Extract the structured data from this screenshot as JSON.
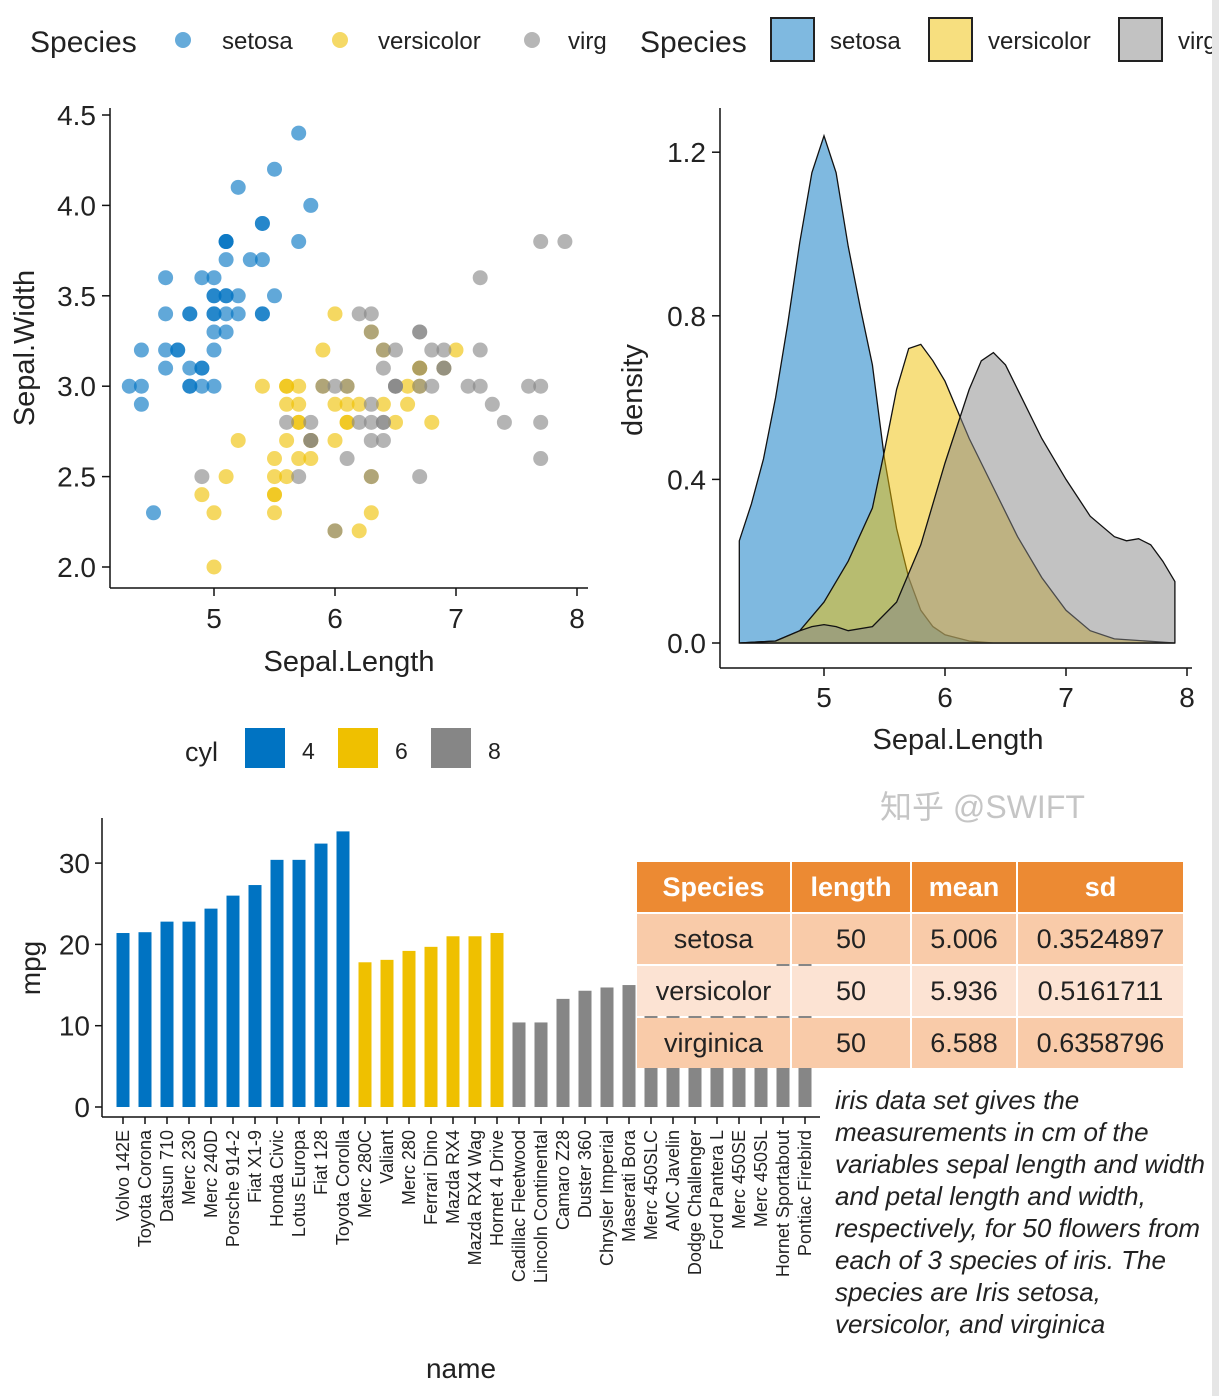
{
  "colors": {
    "setosa": "#0073C2",
    "versicolor": "#EFC000",
    "virginica": "#868686",
    "table_header": "#EC8A33",
    "table_odd": "#F9CBA9",
    "table_even": "#FCE3D3"
  },
  "chart_data": [
    {
      "type": "scatter",
      "legend": {
        "title": "Species",
        "entries": [
          "setosa",
          "versicolor",
          "virg"
        ],
        "placement": "top"
      },
      "xlabel": "Sepal.Length",
      "ylabel": "Sepal.Width",
      "xlim": [
        4.2,
        8.05
      ],
      "ylim": [
        1.9,
        4.55
      ],
      "xticks": [
        5,
        6,
        7,
        8
      ],
      "yticks": [
        "2.0",
        "2.5",
        "3.0",
        "3.5",
        "4.0",
        "4.5"
      ],
      "series": [
        {
          "name": "setosa",
          "points": [
            [
              5.1,
              3.5
            ],
            [
              4.9,
              3.0
            ],
            [
              4.7,
              3.2
            ],
            [
              4.6,
              3.1
            ],
            [
              5.0,
              3.6
            ],
            [
              5.4,
              3.9
            ],
            [
              4.6,
              3.4
            ],
            [
              5.0,
              3.4
            ],
            [
              4.4,
              2.9
            ],
            [
              4.9,
              3.1
            ],
            [
              5.4,
              3.7
            ],
            [
              4.8,
              3.4
            ],
            [
              4.8,
              3.0
            ],
            [
              4.3,
              3.0
            ],
            [
              5.8,
              4.0
            ],
            [
              5.7,
              4.4
            ],
            [
              5.4,
              3.9
            ],
            [
              5.1,
              3.5
            ],
            [
              5.7,
              3.8
            ],
            [
              5.1,
              3.8
            ],
            [
              5.4,
              3.4
            ],
            [
              5.1,
              3.7
            ],
            [
              4.6,
              3.6
            ],
            [
              5.1,
              3.3
            ],
            [
              4.8,
              3.4
            ],
            [
              5.0,
              3.0
            ],
            [
              5.0,
              3.4
            ],
            [
              5.2,
              3.5
            ],
            [
              5.2,
              3.4
            ],
            [
              4.7,
              3.2
            ],
            [
              4.8,
              3.1
            ],
            [
              5.4,
              3.4
            ],
            [
              5.2,
              4.1
            ],
            [
              5.5,
              4.2
            ],
            [
              4.9,
              3.1
            ],
            [
              5.0,
              3.2
            ],
            [
              5.5,
              3.5
            ],
            [
              4.9,
              3.6
            ],
            [
              4.4,
              3.0
            ],
            [
              5.1,
              3.4
            ],
            [
              5.0,
              3.5
            ],
            [
              4.5,
              2.3
            ],
            [
              4.4,
              3.2
            ],
            [
              5.0,
              3.5
            ],
            [
              5.1,
              3.8
            ],
            [
              4.8,
              3.0
            ],
            [
              5.1,
              3.8
            ],
            [
              4.6,
              3.2
            ],
            [
              5.3,
              3.7
            ],
            [
              5.0,
              3.3
            ]
          ]
        },
        {
          "name": "versicolor",
          "points": [
            [
              7.0,
              3.2
            ],
            [
              6.4,
              3.2
            ],
            [
              6.9,
              3.1
            ],
            [
              5.5,
              2.3
            ],
            [
              6.5,
              2.8
            ],
            [
              5.7,
              2.8
            ],
            [
              6.3,
              3.3
            ],
            [
              4.9,
              2.4
            ],
            [
              6.6,
              2.9
            ],
            [
              5.2,
              2.7
            ],
            [
              5.0,
              2.0
            ],
            [
              5.9,
              3.0
            ],
            [
              6.0,
              2.2
            ],
            [
              6.1,
              2.9
            ],
            [
              5.6,
              2.9
            ],
            [
              6.7,
              3.1
            ],
            [
              5.6,
              3.0
            ],
            [
              5.8,
              2.7
            ],
            [
              6.2,
              2.2
            ],
            [
              5.6,
              2.5
            ],
            [
              5.9,
              3.2
            ],
            [
              6.1,
              2.8
            ],
            [
              6.3,
              2.5
            ],
            [
              6.1,
              2.8
            ],
            [
              6.4,
              2.9
            ],
            [
              6.6,
              3.0
            ],
            [
              6.8,
              2.8
            ],
            [
              6.7,
              3.0
            ],
            [
              6.0,
              2.9
            ],
            [
              5.7,
              2.6
            ],
            [
              5.5,
              2.4
            ],
            [
              5.5,
              2.4
            ],
            [
              5.8,
              2.7
            ],
            [
              6.0,
              2.7
            ],
            [
              5.4,
              3.0
            ],
            [
              6.0,
              3.4
            ],
            [
              6.7,
              3.1
            ],
            [
              6.3,
              2.3
            ],
            [
              5.6,
              3.0
            ],
            [
              5.5,
              2.5
            ],
            [
              5.5,
              2.6
            ],
            [
              6.1,
              3.0
            ],
            [
              5.8,
              2.6
            ],
            [
              5.0,
              2.3
            ],
            [
              5.6,
              2.7
            ],
            [
              5.7,
              3.0
            ],
            [
              5.7,
              2.9
            ],
            [
              6.2,
              2.9
            ],
            [
              5.1,
              2.5
            ],
            [
              5.7,
              2.8
            ]
          ]
        },
        {
          "name": "virginica",
          "points": [
            [
              6.3,
              3.3
            ],
            [
              5.8,
              2.7
            ],
            [
              7.1,
              3.0
            ],
            [
              6.3,
              2.9
            ],
            [
              6.5,
              3.0
            ],
            [
              7.6,
              3.0
            ],
            [
              4.9,
              2.5
            ],
            [
              7.3,
              2.9
            ],
            [
              6.7,
              2.5
            ],
            [
              7.2,
              3.6
            ],
            [
              6.5,
              3.2
            ],
            [
              6.4,
              2.7
            ],
            [
              6.8,
              3.0
            ],
            [
              5.7,
              2.5
            ],
            [
              5.8,
              2.8
            ],
            [
              6.4,
              3.2
            ],
            [
              6.5,
              3.0
            ],
            [
              7.7,
              3.8
            ],
            [
              7.7,
              2.6
            ],
            [
              6.0,
              2.2
            ],
            [
              6.9,
              3.2
            ],
            [
              5.6,
              2.8
            ],
            [
              7.7,
              2.8
            ],
            [
              6.3,
              2.7
            ],
            [
              6.7,
              3.3
            ],
            [
              7.2,
              3.2
            ],
            [
              6.2,
              2.8
            ],
            [
              6.1,
              3.0
            ],
            [
              6.4,
              2.8
            ],
            [
              7.2,
              3.0
            ],
            [
              7.4,
              2.8
            ],
            [
              7.9,
              3.8
            ],
            [
              6.4,
              2.8
            ],
            [
              6.3,
              2.8
            ],
            [
              6.1,
              2.6
            ],
            [
              7.7,
              3.0
            ],
            [
              6.3,
              3.4
            ],
            [
              6.4,
              3.1
            ],
            [
              6.0,
              3.0
            ],
            [
              6.9,
              3.1
            ],
            [
              6.7,
              3.1
            ],
            [
              6.9,
              3.1
            ],
            [
              5.8,
              2.7
            ],
            [
              6.8,
              3.2
            ],
            [
              6.7,
              3.3
            ],
            [
              6.7,
              3.0
            ],
            [
              6.3,
              2.5
            ],
            [
              6.5,
              3.0
            ],
            [
              6.2,
              3.4
            ],
            [
              5.9,
              3.0
            ]
          ]
        }
      ]
    },
    {
      "type": "area",
      "legend": {
        "title": "Species",
        "entries": [
          "setosa",
          "versicolor",
          "virg"
        ],
        "placement": "top"
      },
      "xlabel": "Sepal.Length",
      "ylabel": "density",
      "xlim": [
        4.12,
        8.05
      ],
      "ylim": [
        -0.05,
        1.32
      ],
      "xticks": [
        5,
        6,
        7,
        8
      ],
      "yticks": [
        "0.0",
        "0.4",
        "0.8",
        "1.2"
      ],
      "series": [
        {
          "name": "setosa",
          "x": [
            4.3,
            4.4,
            4.5,
            4.6,
            4.7,
            4.8,
            4.9,
            5.0,
            5.1,
            5.2,
            5.3,
            5.4,
            5.5,
            5.6,
            5.7,
            5.8,
            5.9,
            6.0,
            6.2,
            6.4,
            6.6,
            7.0,
            7.9
          ],
          "y": [
            0.25,
            0.34,
            0.45,
            0.6,
            0.78,
            0.98,
            1.15,
            1.24,
            1.15,
            0.97,
            0.82,
            0.68,
            0.45,
            0.28,
            0.16,
            0.08,
            0.04,
            0.02,
            0.005,
            0,
            0,
            0,
            0
          ]
        },
        {
          "name": "versicolor",
          "x": [
            4.3,
            4.6,
            4.8,
            5.0,
            5.2,
            5.4,
            5.5,
            5.6,
            5.7,
            5.8,
            5.9,
            6.0,
            6.1,
            6.2,
            6.4,
            6.6,
            6.8,
            7.0,
            7.2,
            7.4,
            7.9
          ],
          "y": [
            0,
            0.005,
            0.03,
            0.1,
            0.2,
            0.33,
            0.47,
            0.62,
            0.72,
            0.73,
            0.69,
            0.64,
            0.57,
            0.5,
            0.38,
            0.26,
            0.16,
            0.08,
            0.03,
            0.01,
            0
          ]
        },
        {
          "name": "virginica",
          "x": [
            4.3,
            4.6,
            4.8,
            4.9,
            5.0,
            5.1,
            5.2,
            5.4,
            5.6,
            5.8,
            6.0,
            6.2,
            6.3,
            6.4,
            6.5,
            6.6,
            6.8,
            7.0,
            7.2,
            7.4,
            7.5,
            7.6,
            7.7,
            7.8,
            7.9
          ],
          "y": [
            0,
            0.005,
            0.03,
            0.04,
            0.045,
            0.04,
            0.03,
            0.04,
            0.1,
            0.24,
            0.44,
            0.62,
            0.69,
            0.71,
            0.68,
            0.62,
            0.5,
            0.4,
            0.31,
            0.26,
            0.25,
            0.255,
            0.24,
            0.2,
            0.15
          ]
        }
      ]
    },
    {
      "type": "bar",
      "legend": {
        "title": "cyl",
        "entries": [
          "4",
          "6",
          "8"
        ],
        "placement": "top"
      },
      "xlabel": "name",
      "ylabel": "mpg",
      "ylim": [
        0,
        35
      ],
      "yticks": [
        0,
        10,
        20,
        30
      ],
      "categories": [
        "Volvo 142E",
        "Toyota Corona",
        "Datsun 710",
        "Merc 230",
        "Merc 240D",
        "Porsche 914-2",
        "Fiat X1-9",
        "Honda Civic",
        "Lotus Europa",
        "Fiat 128",
        "Toyota Corolla",
        "Merc 280C",
        "Valiant",
        "Merc 280",
        "Ferrari Dino",
        "Mazda RX4",
        "Mazda RX4 Wag",
        "Hornet 4 Drive",
        "Cadillac Fleetwood",
        "Lincoln Continental",
        "Camaro Z28",
        "Duster 360",
        "Chrysler Imperial",
        "Maserati Bora",
        "Merc 450SLC",
        "AMC Javelin",
        "Dodge Challenger",
        "Ford Pantera L",
        "Merc 450SE",
        "Merc 450SL",
        "Hornet Sportabout",
        "Pontiac Firebird"
      ],
      "values": [
        21.4,
        21.5,
        22.8,
        22.8,
        24.4,
        26.0,
        27.3,
        30.4,
        30.4,
        32.4,
        33.9,
        17.8,
        18.1,
        19.2,
        19.7,
        21.0,
        21.0,
        21.4,
        10.4,
        10.4,
        13.3,
        14.3,
        14.7,
        15.0,
        15.2,
        15.2,
        15.5,
        15.8,
        16.4,
        17.3,
        18.7,
        19.2
      ],
      "groups": [
        "4",
        "4",
        "4",
        "4",
        "4",
        "4",
        "4",
        "4",
        "4",
        "4",
        "4",
        "6",
        "6",
        "6",
        "6",
        "6",
        "6",
        "6",
        "8",
        "8",
        "8",
        "8",
        "8",
        "8",
        "8",
        "8",
        "8",
        "8",
        "8",
        "8",
        "8",
        "8"
      ]
    },
    {
      "type": "table",
      "columns": [
        "Species",
        "length",
        "mean",
        "sd"
      ],
      "rows": [
        [
          "setosa",
          "50",
          "5.006",
          "0.3524897"
        ],
        [
          "versicolor",
          "50",
          "5.936",
          "0.5161711"
        ],
        [
          "virginica",
          "50",
          "6.588",
          "0.6358796"
        ]
      ]
    }
  ],
  "description": "iris data set gives the measurements in cm of the variables sepal length and width and petal length and width, respectively, for 50 flowers from each of 3 species of iris. The species are Iris setosa, versicolor, and virginica",
  "watermark": "知乎 @SWIFT"
}
